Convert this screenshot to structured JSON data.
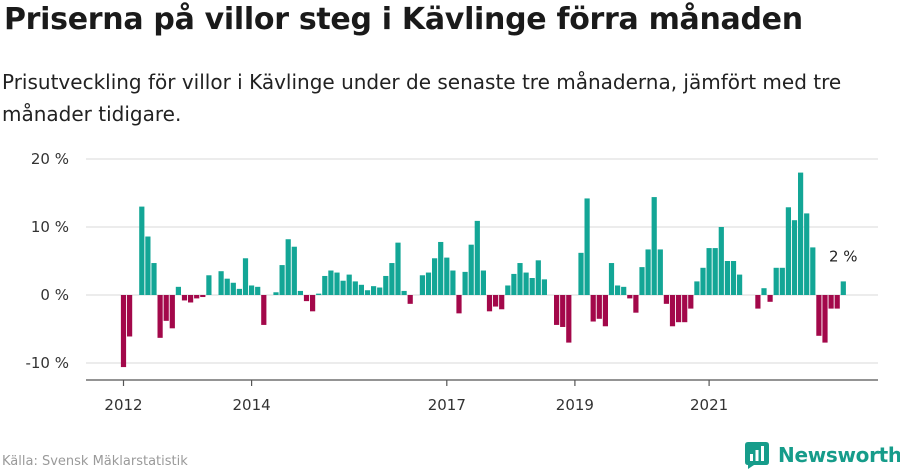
{
  "title": "Priserna på villor steg i Kävlinge förra månaden",
  "subtitle": "Prisutveckling för villor i Kävlinge under de senaste tre månaderna, jämfört med tre månader tidigare.",
  "source": "Källa: Svensk Mäklarstatistik",
  "brand": "Newsworthy",
  "colors": {
    "positive": "#13a696",
    "negative": "#a3084a",
    "brand": "#169c8a"
  },
  "chart_data": {
    "type": "bar",
    "ylim": [
      -12,
      20
    ],
    "y_ticks": [
      {
        "value": 20,
        "label": "20 %"
      },
      {
        "value": 10,
        "label": "10 %"
      },
      {
        "value": 0,
        "label": "0 %"
      },
      {
        "value": -10,
        "label": "-10 %"
      }
    ],
    "x_ticks": [
      {
        "index": 0,
        "label": "2012"
      },
      {
        "index": 21,
        "label": "2014"
      },
      {
        "index": 53,
        "label": "2017"
      },
      {
        "index": 74,
        "label": "2019"
      },
      {
        "index": 96,
        "label": "2021"
      }
    ],
    "last_value_label": "2 %",
    "values": [
      -10.6,
      -6.1,
      0.0,
      13.0,
      8.6,
      4.7,
      -6.3,
      -3.8,
      -4.9,
      1.2,
      -0.8,
      -1.1,
      -0.5,
      -0.3,
      2.9,
      0.0,
      3.5,
      2.4,
      1.8,
      0.9,
      5.4,
      1.4,
      1.2,
      -4.4,
      0.0,
      0.4,
      4.4,
      8.2,
      7.1,
      0.6,
      -0.9,
      -2.4,
      0.2,
      2.8,
      3.6,
      3.3,
      2.1,
      3.0,
      2.0,
      1.5,
      0.7,
      1.3,
      1.1,
      2.8,
      4.7,
      7.7,
      0.6,
      -1.3,
      0.0,
      2.9,
      3.3,
      5.4,
      7.8,
      5.5,
      3.6,
      -2.7,
      3.4,
      7.4,
      10.9,
      3.6,
      -2.4,
      -1.7,
      -2.1,
      1.4,
      3.1,
      4.7,
      3.3,
      2.5,
      5.1,
      2.3,
      0.0,
      -4.4,
      -4.7,
      -7.0,
      0.0,
      6.2,
      14.2,
      -3.9,
      -3.5,
      -4.6,
      4.7,
      1.4,
      1.2,
      -0.5,
      -2.6,
      4.1,
      6.7,
      14.4,
      6.7,
      -1.3,
      -4.6,
      -4.0,
      -4.0,
      -2.0,
      2.0,
      4.0,
      6.9,
      6.9,
      10.0,
      5.0,
      5.0,
      3.0,
      0.0,
      0.0,
      -2.0,
      1.0,
      -1.0,
      4.0,
      4.0,
      12.9,
      11.0,
      18.0,
      12.0,
      7.0,
      -6.0,
      -7.0,
      -2.0,
      -2.0,
      2.0
    ]
  }
}
